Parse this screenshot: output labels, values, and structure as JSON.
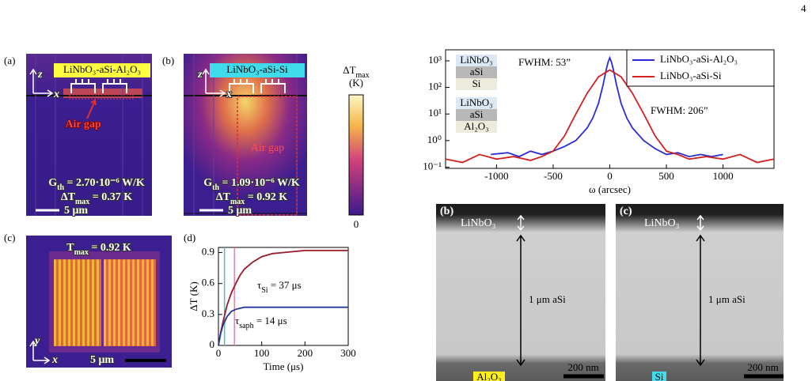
{
  "page_number": "4",
  "figure_left": {
    "panel_a": {
      "label": "(a)",
      "title": "LiNbO₃-aSi-Al₂O₃",
      "axis_z": "z",
      "axis_x": "x",
      "annotation": "Air gap",
      "conductance": {
        "main": "G",
        "sub": "th",
        "rest": " = 2.70·10⁻⁶ W/K"
      },
      "delta_t": {
        "main": "ΔT",
        "sub": "max",
        "rest": " = 0.37 K"
      },
      "scale": "5 μm"
    },
    "panel_b": {
      "label": "(b)",
      "title": "LiNbO₃-aSi-Si",
      "axis_z": "z",
      "axis_x": "x",
      "annotation": "Air gap",
      "conductance": {
        "main": "G",
        "sub": "th",
        "rest": " = 1.09·10⁻⁶ W/K"
      },
      "delta_t": {
        "main": "ΔT",
        "sub": "max",
        "rest": " = 0.92 K"
      },
      "scale": "5 μm"
    },
    "colorbar": {
      "title": {
        "main": "ΔT",
        "sub": "max"
      },
      "unit": "(K)",
      "min_label": "0"
    },
    "panel_c": {
      "label": "(c)",
      "annotation": {
        "main": "T",
        "sub": "max",
        "rest": " = 0.92 K"
      },
      "axis_y": "y",
      "axis_x": "x",
      "scale": "5 μm"
    },
    "panel_d": {
      "label": "(d)"
    }
  },
  "figure_right": {
    "tem_b": {
      "label": "(b)",
      "top_layer": "LiNbO₃",
      "thickness": "1 μm aSi",
      "scale": "200 nm",
      "substrate": "Al₂O₃"
    },
    "tem_c": {
      "label": "(c)",
      "top_layer": "LiNbO₃",
      "thickness": "1 μm aSi",
      "scale": "200 nm",
      "substrate": "Si"
    }
  },
  "chart_data": [
    {
      "type": "line",
      "xlabel": "Time (μs)",
      "ylabel": "ΔT (K)",
      "xlim": [
        0,
        300
      ],
      "ylim": [
        0,
        0.95
      ],
      "xticks": [
        0,
        100,
        200,
        300
      ],
      "yticks": [
        0,
        0.3,
        0.6,
        0.9
      ],
      "series": [
        {
          "color": "#9b1b2a",
          "x": [
            0,
            5,
            10,
            20,
            30,
            40,
            50,
            60,
            80,
            100,
            125,
            150,
            200,
            250,
            300
          ],
          "values": [
            0,
            0.12,
            0.22,
            0.39,
            0.51,
            0.6,
            0.68,
            0.74,
            0.81,
            0.86,
            0.89,
            0.9,
            0.92,
            0.92,
            0.92
          ]
        },
        {
          "color": "#25389a",
          "x": [
            0,
            5,
            10,
            20,
            30,
            40,
            50,
            60,
            80,
            100,
            150,
            200,
            250,
            300
          ],
          "values": [
            0,
            0.11,
            0.19,
            0.28,
            0.33,
            0.35,
            0.36,
            0.37,
            0.37,
            0.37,
            0.37,
            0.37,
            0.37,
            0.37
          ]
        }
      ],
      "vlines": [
        {
          "value": 14,
          "color": "#40c8c8"
        },
        {
          "value": 37,
          "color": "#e08a9a"
        }
      ],
      "annotations": [
        {
          "main": "τ",
          "sub": "Si",
          "rest": " = 37 μs",
          "color": "#9b1b2a"
        },
        {
          "main": "τ",
          "sub": "saph",
          "rest": " = 14 μs",
          "color": "#25389a"
        }
      ]
    },
    {
      "type": "line",
      "xlabel": "ω (arcsec)",
      "log_y": true,
      "legend": "upper right",
      "xlim": [
        -1450,
        1450
      ],
      "ylim": [
        0.09,
        2600
      ],
      "xticks": [
        -1000,
        -500,
        0,
        500,
        1000
      ],
      "yticks": [
        {
          "value": 0.1,
          "label": "10⁻¹"
        },
        {
          "value": 1,
          "label": "10⁰"
        },
        {
          "value": 10,
          "label": "10¹"
        },
        {
          "value": 100,
          "label": "10²"
        },
        {
          "value": 1000,
          "label": "10³"
        }
      ],
      "series": [
        {
          "name": "LiNbO₃-aSi-Al₂O₃",
          "color": "#2b2bd9",
          "x": [
            -1050,
            -900,
            -800,
            -700,
            -600,
            -500,
            -400,
            -300,
            -200,
            -150,
            -100,
            -60,
            -30,
            -15,
            0,
            15,
            30,
            60,
            100,
            150,
            200,
            300,
            400,
            500,
            600,
            700,
            800,
            900,
            1000
          ],
          "values": [
            0.3,
            0.35,
            0.25,
            0.4,
            0.3,
            0.4,
            0.6,
            1.0,
            3,
            7,
            25,
            120,
            500,
            900,
            1300,
            900,
            500,
            120,
            25,
            7,
            3,
            1.0,
            0.5,
            0.3,
            0.35,
            0.25,
            0.3,
            0.25,
            0.3
          ]
        },
        {
          "name": "LiNbO₃-aSi-Si",
          "color": "#d42020",
          "x": [
            -1450,
            -1300,
            -1150,
            -1000,
            -850,
            -700,
            -600,
            -500,
            -400,
            -300,
            -200,
            -100,
            0,
            100,
            200,
            300,
            400,
            500,
            600,
            700,
            850,
            1000,
            1150,
            1300,
            1450
          ],
          "values": [
            0.2,
            0.15,
            0.3,
            0.2,
            0.25,
            0.18,
            0.25,
            0.4,
            1.5,
            10,
            60,
            250,
            450,
            250,
            60,
            10,
            1.5,
            0.4,
            0.3,
            0.2,
            0.25,
            0.2,
            0.3,
            0.15,
            0.2
          ]
        }
      ],
      "annotations": [
        {
          "text": "FWHM: 53”",
          "color": "#2b2bd9"
        },
        {
          "text": "FWHM: 206”",
          "color": "#d42020"
        }
      ],
      "inset_stacks": [
        [
          "LiNbO₃",
          "aSi",
          "Si"
        ],
        [
          "LiNbO₃",
          "aSi",
          "Al₂O₃"
        ]
      ]
    }
  ]
}
